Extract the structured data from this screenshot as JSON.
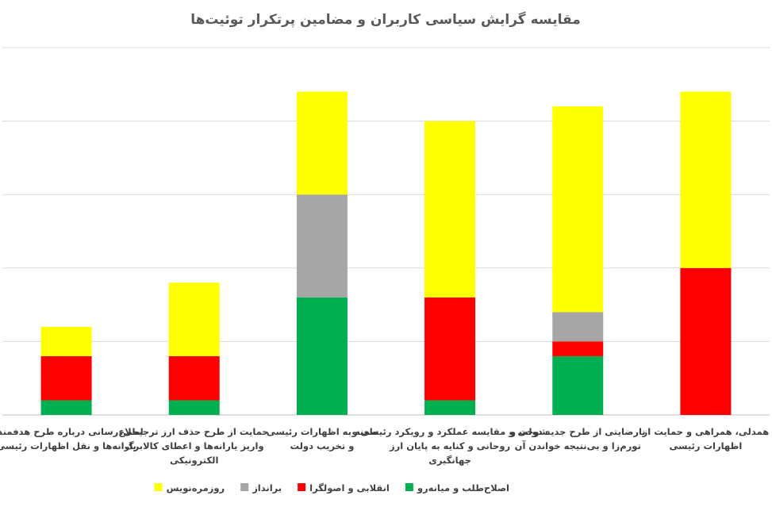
{
  "chart_data": {
    "type": "bar",
    "stacked": true,
    "title": "مقایسه گرایش سیاسی کاربران و مضامین پرتکرار توئیت‌ها",
    "categories": [
      [
        "اطلاع‌رسانی درباره طرح هدفمندی",
        "یارانه‌ها و نقل اظهارات رئیسی"
      ],
      [
        "حمایت از طرح حذف ارز ترجیحی،",
        "واریز یارانه‌ها و اعطای کالابرگ",
        "الکترونیکی"
      ],
      [
        "طعنه به اظهارات رئیسی",
        "و تخریب دولت"
      ],
      [
        "شوخی و مقایسه عملکرد و رویکرد رئیسی و",
        "روحانی و کنایه به پایان ارز",
        "جهانگیری"
      ],
      [
        "نارضایتی از طرح جدید دولت و",
        "تورم‌زا و بی‌نتیجه خواندن آن"
      ],
      [
        "همدلی، همراهی و حمایت از",
        "اظهارات رئیسی"
      ]
    ],
    "series": [
      {
        "name": "اصلاح‌طلب و میانه‌رو",
        "color": "#00b050",
        "values": [
          1,
          1,
          8,
          1,
          4,
          0
        ]
      },
      {
        "name": "انقلابی و اصولگرا",
        "color": "#ff0000",
        "values": [
          3,
          3,
          0,
          7,
          1,
          10
        ]
      },
      {
        "name": "برانداز",
        "color": "#a6a6a6",
        "values": [
          0,
          0,
          7,
          0,
          2,
          0
        ]
      },
      {
        "name": "روزمره‌نویس",
        "color": "#ffff00",
        "values": [
          2,
          5,
          7,
          12,
          14,
          12
        ]
      }
    ],
    "ylim": [
      0,
      25
    ],
    "gridlines": [
      0,
      5,
      10,
      15,
      20,
      25
    ],
    "grid": true,
    "legend_position": "bottom",
    "xlabel": "",
    "ylabel": ""
  }
}
